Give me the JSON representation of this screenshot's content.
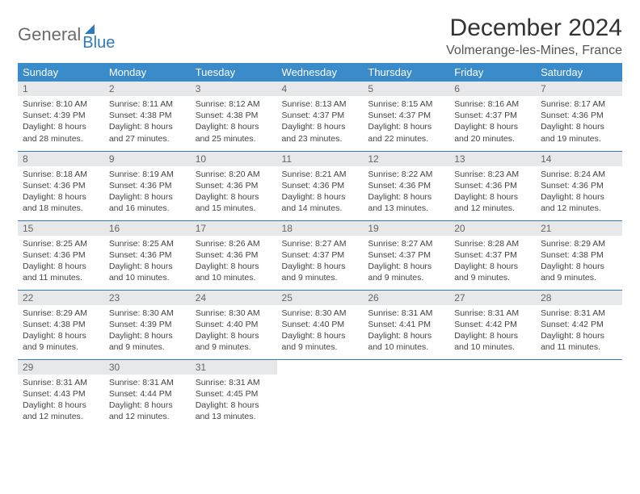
{
  "logo": {
    "text1": "General",
    "text2": "Blue"
  },
  "title": "December 2024",
  "location": "Volmerange-les-Mines, France",
  "colors": {
    "header_bg": "#3a8bc9",
    "header_text": "#ffffff",
    "daynum_bg": "#e7e8e9",
    "rule": "#2f7bbf",
    "logo_blue": "#2f7bbf"
  },
  "day_headers": [
    "Sunday",
    "Monday",
    "Tuesday",
    "Wednesday",
    "Thursday",
    "Friday",
    "Saturday"
  ],
  "weeks": [
    [
      {
        "n": "1",
        "sunrise": "8:10 AM",
        "sunset": "4:39 PM",
        "dl": "8 hours and 28 minutes."
      },
      {
        "n": "2",
        "sunrise": "8:11 AM",
        "sunset": "4:38 PM",
        "dl": "8 hours and 27 minutes."
      },
      {
        "n": "3",
        "sunrise": "8:12 AM",
        "sunset": "4:38 PM",
        "dl": "8 hours and 25 minutes."
      },
      {
        "n": "4",
        "sunrise": "8:13 AM",
        "sunset": "4:37 PM",
        "dl": "8 hours and 23 minutes."
      },
      {
        "n": "5",
        "sunrise": "8:15 AM",
        "sunset": "4:37 PM",
        "dl": "8 hours and 22 minutes."
      },
      {
        "n": "6",
        "sunrise": "8:16 AM",
        "sunset": "4:37 PM",
        "dl": "8 hours and 20 minutes."
      },
      {
        "n": "7",
        "sunrise": "8:17 AM",
        "sunset": "4:36 PM",
        "dl": "8 hours and 19 minutes."
      }
    ],
    [
      {
        "n": "8",
        "sunrise": "8:18 AM",
        "sunset": "4:36 PM",
        "dl": "8 hours and 18 minutes."
      },
      {
        "n": "9",
        "sunrise": "8:19 AM",
        "sunset": "4:36 PM",
        "dl": "8 hours and 16 minutes."
      },
      {
        "n": "10",
        "sunrise": "8:20 AM",
        "sunset": "4:36 PM",
        "dl": "8 hours and 15 minutes."
      },
      {
        "n": "11",
        "sunrise": "8:21 AM",
        "sunset": "4:36 PM",
        "dl": "8 hours and 14 minutes."
      },
      {
        "n": "12",
        "sunrise": "8:22 AM",
        "sunset": "4:36 PM",
        "dl": "8 hours and 13 minutes."
      },
      {
        "n": "13",
        "sunrise": "8:23 AM",
        "sunset": "4:36 PM",
        "dl": "8 hours and 12 minutes."
      },
      {
        "n": "14",
        "sunrise": "8:24 AM",
        "sunset": "4:36 PM",
        "dl": "8 hours and 12 minutes."
      }
    ],
    [
      {
        "n": "15",
        "sunrise": "8:25 AM",
        "sunset": "4:36 PM",
        "dl": "8 hours and 11 minutes."
      },
      {
        "n": "16",
        "sunrise": "8:25 AM",
        "sunset": "4:36 PM",
        "dl": "8 hours and 10 minutes."
      },
      {
        "n": "17",
        "sunrise": "8:26 AM",
        "sunset": "4:36 PM",
        "dl": "8 hours and 10 minutes."
      },
      {
        "n": "18",
        "sunrise": "8:27 AM",
        "sunset": "4:37 PM",
        "dl": "8 hours and 9 minutes."
      },
      {
        "n": "19",
        "sunrise": "8:27 AM",
        "sunset": "4:37 PM",
        "dl": "8 hours and 9 minutes."
      },
      {
        "n": "20",
        "sunrise": "8:28 AM",
        "sunset": "4:37 PM",
        "dl": "8 hours and 9 minutes."
      },
      {
        "n": "21",
        "sunrise": "8:29 AM",
        "sunset": "4:38 PM",
        "dl": "8 hours and 9 minutes."
      }
    ],
    [
      {
        "n": "22",
        "sunrise": "8:29 AM",
        "sunset": "4:38 PM",
        "dl": "8 hours and 9 minutes."
      },
      {
        "n": "23",
        "sunrise": "8:30 AM",
        "sunset": "4:39 PM",
        "dl": "8 hours and 9 minutes."
      },
      {
        "n": "24",
        "sunrise": "8:30 AM",
        "sunset": "4:40 PM",
        "dl": "8 hours and 9 minutes."
      },
      {
        "n": "25",
        "sunrise": "8:30 AM",
        "sunset": "4:40 PM",
        "dl": "8 hours and 9 minutes."
      },
      {
        "n": "26",
        "sunrise": "8:31 AM",
        "sunset": "4:41 PM",
        "dl": "8 hours and 10 minutes."
      },
      {
        "n": "27",
        "sunrise": "8:31 AM",
        "sunset": "4:42 PM",
        "dl": "8 hours and 10 minutes."
      },
      {
        "n": "28",
        "sunrise": "8:31 AM",
        "sunset": "4:42 PM",
        "dl": "8 hours and 11 minutes."
      }
    ],
    [
      {
        "n": "29",
        "sunrise": "8:31 AM",
        "sunset": "4:43 PM",
        "dl": "8 hours and 12 minutes."
      },
      {
        "n": "30",
        "sunrise": "8:31 AM",
        "sunset": "4:44 PM",
        "dl": "8 hours and 12 minutes."
      },
      {
        "n": "31",
        "sunrise": "8:31 AM",
        "sunset": "4:45 PM",
        "dl": "8 hours and 13 minutes."
      },
      null,
      null,
      null,
      null
    ]
  ],
  "labels": {
    "sunrise": "Sunrise:",
    "sunset": "Sunset:",
    "daylight": "Daylight:"
  }
}
